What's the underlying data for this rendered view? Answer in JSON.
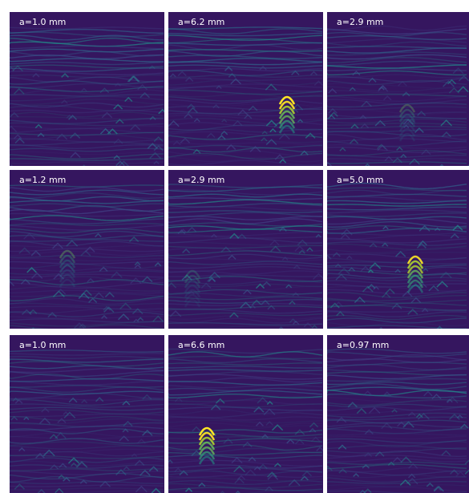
{
  "panels": [
    {
      "label": "a=1.0 mm"
    },
    {
      "label": "a=6.2 mm"
    },
    {
      "label": "a=2.9 mm"
    },
    {
      "label": "a=1.2 mm"
    },
    {
      "label": "a=2.9 mm"
    },
    {
      "label": "a=5.0 mm"
    },
    {
      "label": "a=1.0 mm"
    },
    {
      "label": "a=6.6 mm"
    },
    {
      "label": "a=0.97 mm"
    }
  ]
}
